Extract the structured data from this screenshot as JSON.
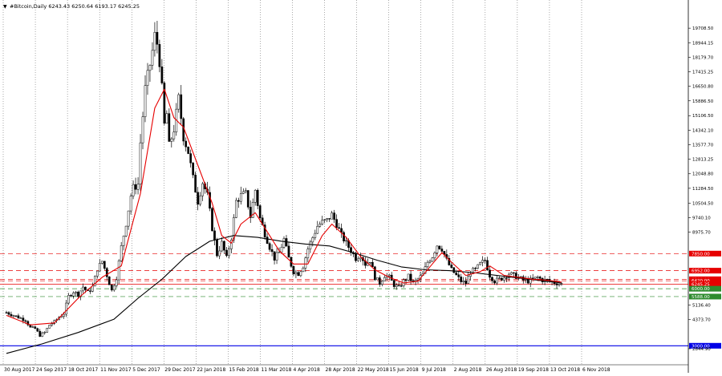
{
  "header": {
    "arrow_glyph": "▼",
    "symbol_line": "#Bitcoin,Daily  6243.43 6250.64 6193.17 6245.25"
  },
  "colors": {
    "bull_candle": "#000000",
    "bear_candle": "#000000",
    "ma_fast": "#e60000",
    "ma_slow": "#000000",
    "level_red": "#e60000",
    "level_green": "#2e8b2e",
    "level_blue": "#0000e6",
    "price_tag_text": "#ffffff"
  },
  "chart_data": {
    "type": "line",
    "ylim": [
      2000,
      20600
    ],
    "y_ticks": [
      "19708.50",
      "18944.15",
      "18179.70",
      "17415.25",
      "16650.80",
      "15886.50",
      "15106.50",
      "14342.10",
      "13577.70",
      "12813.25",
      "12048.80",
      "11284.50",
      "10504.50",
      "9740.10",
      "8975.70",
      "5136.40",
      "4373.70",
      "2844.90"
    ],
    "x_ticks": [
      "30 Aug 2017",
      "24 Sep 2017",
      "18 Oct 2017",
      "11 Nov 2017",
      "5 Dec 2017",
      "29 Dec 2017",
      "22 Jan 2018",
      "15 Feb 2018",
      "11 Mar 2018",
      "4 Apr 2018",
      "28 Apr 2018",
      "22 May 2018",
      "15 Jun 2018",
      "9 Jul 2018",
      "2 Aug 2018",
      "26 Aug 2018",
      "19 Sep 2018",
      "13 Oct 2018",
      "6 Nov 2018"
    ],
    "price_path": [
      [
        0,
        4750
      ],
      [
        4,
        4550
      ],
      [
        8,
        4350
      ],
      [
        10,
        3950
      ],
      [
        12,
        3900
      ],
      [
        14,
        3550
      ],
      [
        16,
        3700
      ],
      [
        18,
        4100
      ],
      [
        20,
        4250
      ],
      [
        22,
        4500
      ],
      [
        24,
        4700
      ],
      [
        26,
        5600
      ],
      [
        28,
        5850
      ],
      [
        30,
        5700
      ],
      [
        32,
        6100
      ],
      [
        34,
        5800
      ],
      [
        36,
        6100
      ],
      [
        38,
        7050
      ],
      [
        40,
        7450
      ],
      [
        42,
        6700
      ],
      [
        44,
        5900
      ],
      [
        46,
        6600
      ],
      [
        48,
        8200
      ],
      [
        50,
        9450
      ],
      [
        52,
        10900
      ],
      [
        53,
        11300
      ],
      [
        55,
        11500
      ],
      [
        56,
        13700
      ],
      [
        58,
        16500
      ],
      [
        60,
        17800
      ],
      [
        61,
        18500
      ],
      [
        62,
        19300
      ],
      [
        63,
        18900
      ],
      [
        64,
        18000
      ],
      [
        65,
        16500
      ],
      [
        66,
        14600
      ],
      [
        67,
        15200
      ],
      [
        68,
        13500
      ],
      [
        70,
        14400
      ],
      [
        72,
        16000
      ],
      [
        74,
        14000
      ],
      [
        76,
        13200
      ],
      [
        78,
        11800
      ],
      [
        80,
        10600
      ],
      [
        82,
        11600
      ],
      [
        84,
        10900
      ],
      [
        86,
        9200
      ],
      [
        88,
        7800
      ],
      [
        90,
        8400
      ],
      [
        92,
        7600
      ],
      [
        94,
        8700
      ],
      [
        96,
        10600
      ],
      [
        98,
        10900
      ],
      [
        100,
        11000
      ],
      [
        102,
        9800
      ],
      [
        104,
        11200
      ],
      [
        106,
        9700
      ],
      [
        108,
        8900
      ],
      [
        110,
        8200
      ],
      [
        112,
        7600
      ],
      [
        114,
        7900
      ],
      [
        116,
        8600
      ],
      [
        118,
        7600
      ],
      [
        120,
        6900
      ],
      [
        122,
        6800
      ],
      [
        124,
        7200
      ],
      [
        126,
        8100
      ],
      [
        128,
        8700
      ],
      [
        130,
        9300
      ],
      [
        132,
        9500
      ],
      [
        134,
        9600
      ],
      [
        136,
        9900
      ],
      [
        138,
        9400
      ],
      [
        140,
        8800
      ],
      [
        142,
        8400
      ],
      [
        144,
        8000
      ],
      [
        146,
        7600
      ],
      [
        148,
        7800
      ],
      [
        150,
        7300
      ],
      [
        152,
        7500
      ],
      [
        154,
        6600
      ],
      [
        156,
        6300
      ],
      [
        158,
        6700
      ],
      [
        160,
        6600
      ],
      [
        162,
        6200
      ],
      [
        164,
        6050
      ],
      [
        166,
        6400
      ],
      [
        168,
        6650
      ],
      [
        170,
        6300
      ],
      [
        172,
        6500
      ],
      [
        174,
        6750
      ],
      [
        176,
        7400
      ],
      [
        178,
        7700
      ],
      [
        180,
        8300
      ],
      [
        182,
        8100
      ],
      [
        184,
        7500
      ],
      [
        186,
        7000
      ],
      [
        188,
        6700
      ],
      [
        190,
        6400
      ],
      [
        192,
        6300
      ],
      [
        194,
        6900
      ],
      [
        196,
        7000
      ],
      [
        198,
        7300
      ],
      [
        200,
        7500
      ],
      [
        202,
        6700
      ],
      [
        204,
        6400
      ],
      [
        206,
        6500
      ],
      [
        208,
        6600
      ],
      [
        210,
        6800
      ],
      [
        212,
        6700
      ],
      [
        214,
        6600
      ],
      [
        216,
        6450
      ],
      [
        218,
        6400
      ],
      [
        220,
        6500
      ],
      [
        222,
        6600
      ],
      [
        224,
        6450
      ],
      [
        226,
        6450
      ],
      [
        228,
        6350
      ],
      [
        230,
        6300
      ],
      [
        232,
        6250
      ]
    ],
    "candle_range": {
      "min_x": 0,
      "max_x": 232
    },
    "ma_fast": [
      [
        0,
        4600
      ],
      [
        10,
        4100
      ],
      [
        20,
        4200
      ],
      [
        30,
        5500
      ],
      [
        40,
        6600
      ],
      [
        48,
        7200
      ],
      [
        56,
        11000
      ],
      [
        62,
        15500
      ],
      [
        66,
        16500
      ],
      [
        70,
        15000
      ],
      [
        74,
        14500
      ],
      [
        80,
        12500
      ],
      [
        86,
        10500
      ],
      [
        90,
        8800
      ],
      [
        94,
        8400
      ],
      [
        98,
        9400
      ],
      [
        104,
        10000
      ],
      [
        108,
        9200
      ],
      [
        114,
        8000
      ],
      [
        120,
        7300
      ],
      [
        126,
        7300
      ],
      [
        132,
        8800
      ],
      [
        136,
        9400
      ],
      [
        142,
        8700
      ],
      [
        148,
        7700
      ],
      [
        154,
        7000
      ],
      [
        160,
        6600
      ],
      [
        166,
        6300
      ],
      [
        172,
        6400
      ],
      [
        178,
        7300
      ],
      [
        182,
        7900
      ],
      [
        186,
        7400
      ],
      [
        192,
        6700
      ],
      [
        198,
        6900
      ],
      [
        202,
        7200
      ],
      [
        208,
        6700
      ],
      [
        214,
        6600
      ],
      [
        220,
        6500
      ],
      [
        226,
        6450
      ],
      [
        232,
        6350
      ]
    ],
    "ma_slow": [
      [
        0,
        2600
      ],
      [
        15,
        3100
      ],
      [
        30,
        3700
      ],
      [
        45,
        4400
      ],
      [
        55,
        5500
      ],
      [
        65,
        6500
      ],
      [
        75,
        7700
      ],
      [
        85,
        8500
      ],
      [
        95,
        8800
      ],
      [
        105,
        8700
      ],
      [
        115,
        8500
      ],
      [
        125,
        8350
      ],
      [
        135,
        8250
      ],
      [
        145,
        7900
      ],
      [
        155,
        7500
      ],
      [
        165,
        7150
      ],
      [
        175,
        7000
      ],
      [
        185,
        6950
      ],
      [
        195,
        6850
      ],
      [
        205,
        6700
      ],
      [
        215,
        6550
      ],
      [
        232,
        6300
      ]
    ],
    "levels": [
      {
        "value": 7850,
        "label": "7850.00",
        "color": "red",
        "style": "dashed"
      },
      {
        "value": 6952,
        "label": "6952.00",
        "color": "red",
        "style": "dashed"
      },
      {
        "value": 6500,
        "label": "6500.00",
        "color": "red",
        "style": "dashed"
      },
      {
        "value": 6420,
        "label": "6420.00",
        "color": "red",
        "style": "dashed"
      },
      {
        "value": 6245.25,
        "label": "6245.25",
        "color": "red",
        "style": "solid"
      },
      {
        "value": 6000,
        "label": "6000.00",
        "color": "green",
        "style": "dashed"
      },
      {
        "value": 5588,
        "label": "5588.00",
        "color": "green",
        "style": "dashed"
      },
      {
        "value": 3000,
        "label": "3000.00",
        "color": "blue",
        "style": "solid"
      }
    ],
    "grid": "vertical-dotted"
  }
}
